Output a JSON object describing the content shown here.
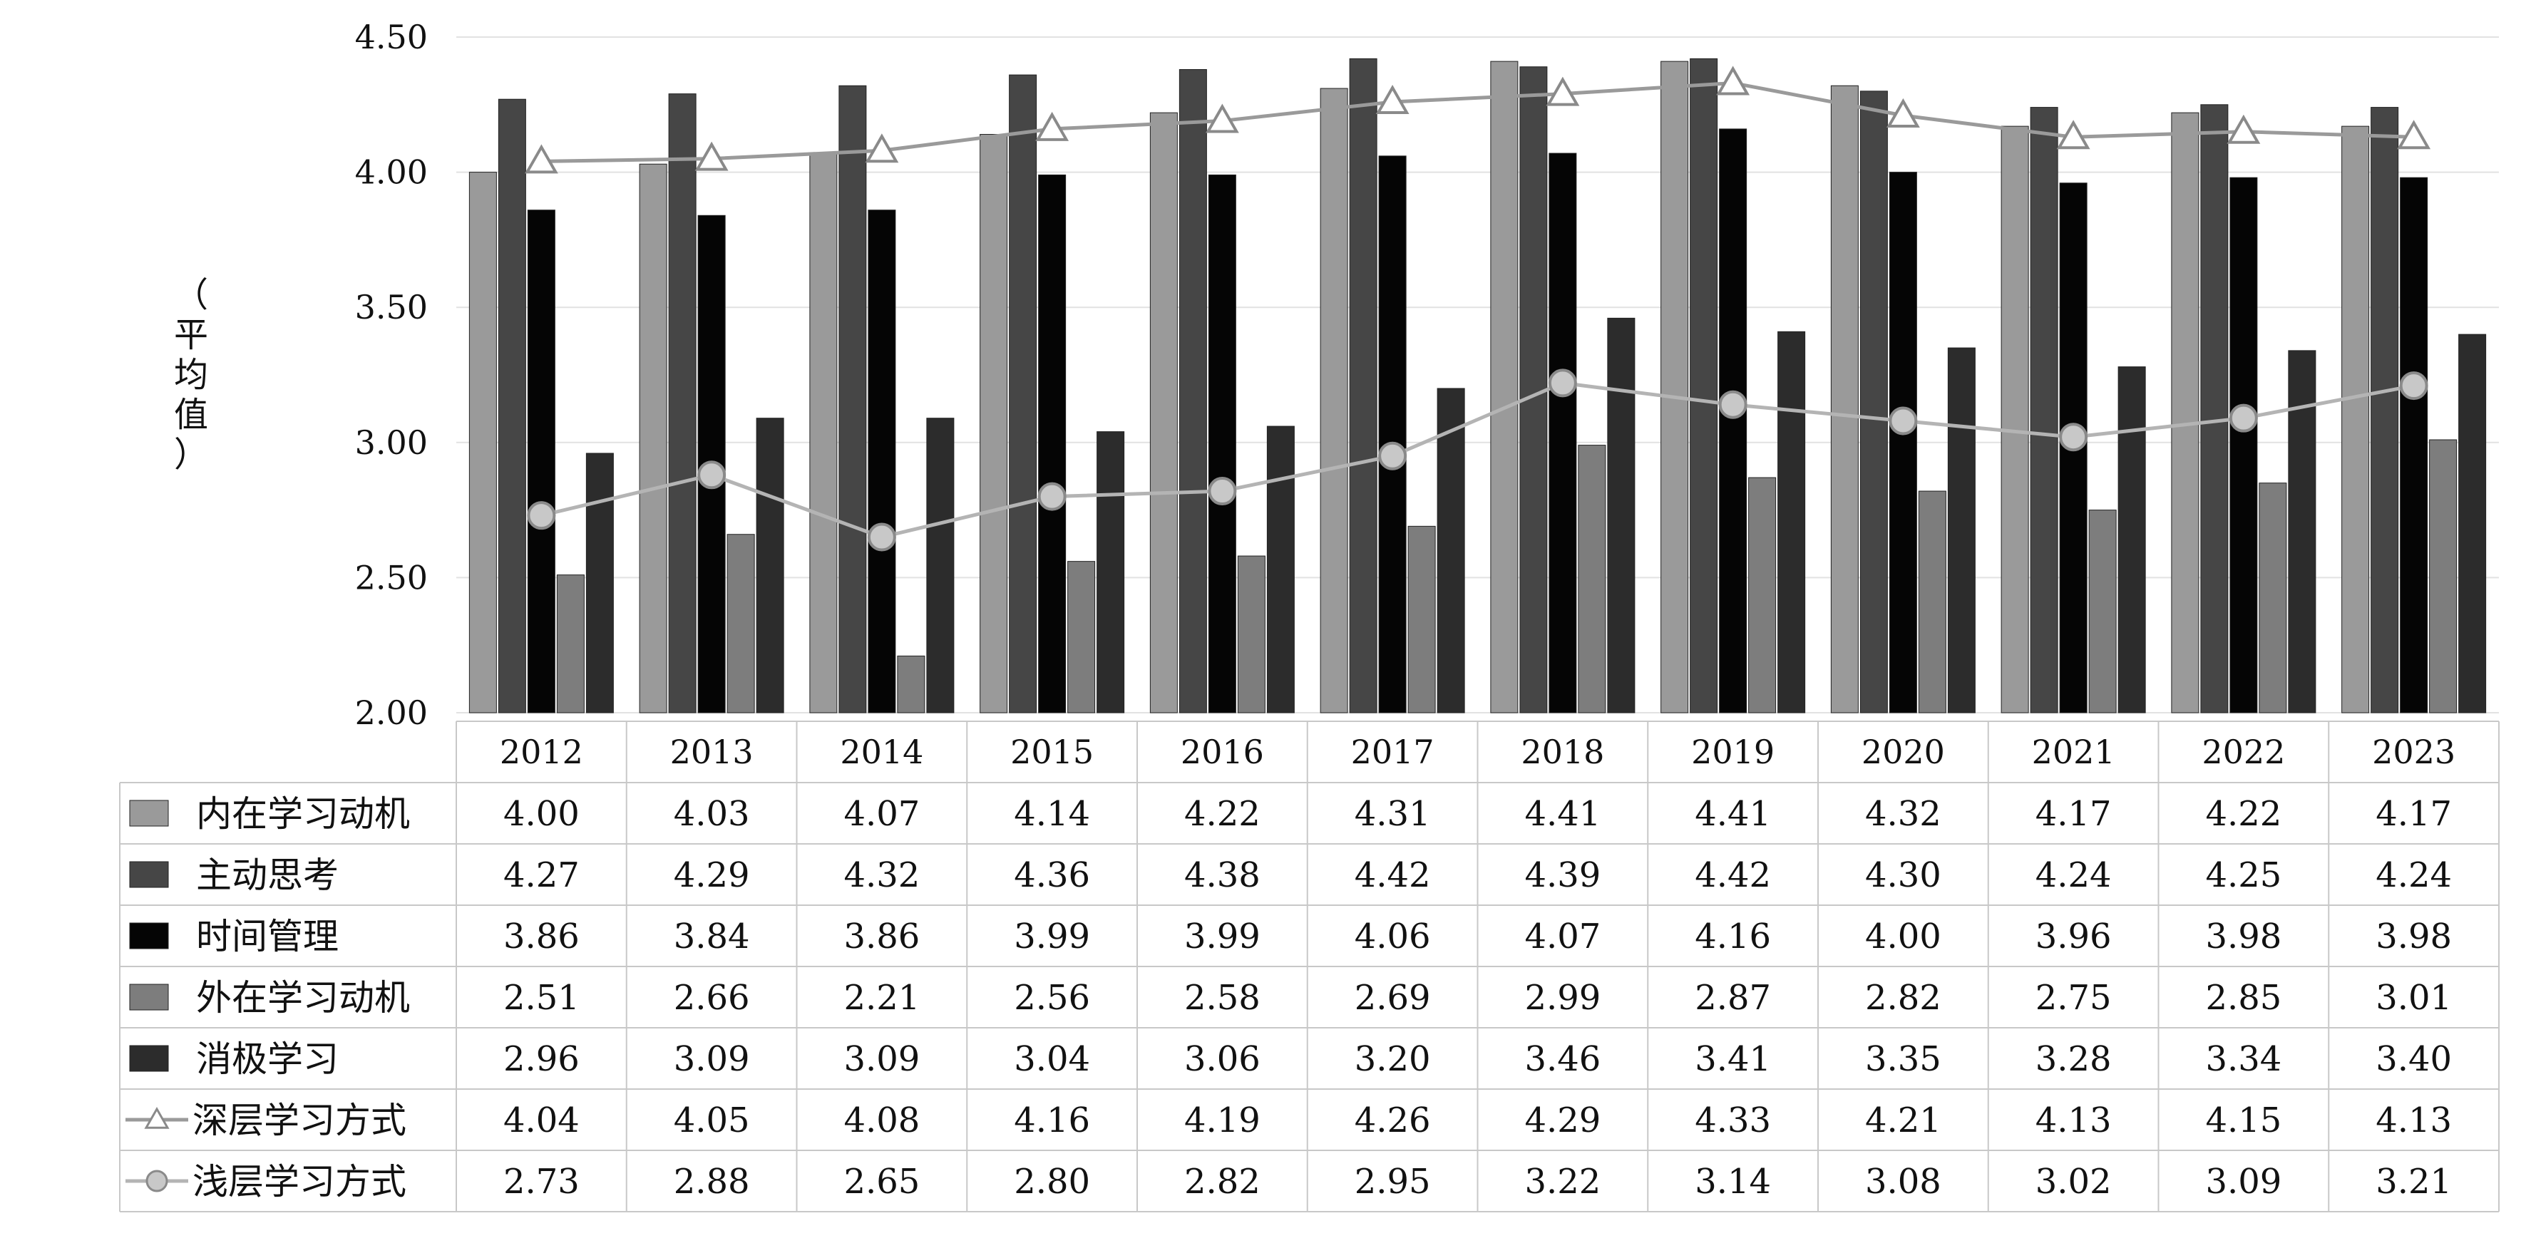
{
  "chart_data": {
    "type": "bar",
    "ylabel": "（平均值）",
    "ylim": [
      2.0,
      4.5
    ],
    "yticks": [
      "2.00",
      "2.50",
      "3.00",
      "3.50",
      "4.00",
      "4.50"
    ],
    "grid": true,
    "legend": "table-below",
    "categories": [
      "2012",
      "2013",
      "2014",
      "2015",
      "2016",
      "2017",
      "2018",
      "2019",
      "2020",
      "2021",
      "2022",
      "2023"
    ],
    "series": [
      {
        "name": "内在学习动机",
        "kind": "bar",
        "color": "#9a9a9a",
        "values": [
          4.0,
          4.03,
          4.07,
          4.14,
          4.22,
          4.31,
          4.41,
          4.41,
          4.32,
          4.17,
          4.22,
          4.17
        ],
        "labels": [
          "4.00",
          "4.03",
          "4.07",
          "4.14",
          "4.22",
          "4.31",
          "4.41",
          "4.41",
          "4.32",
          "4.17",
          "4.22",
          "4.17"
        ]
      },
      {
        "name": "主动思考",
        "kind": "bar",
        "color": "#464646",
        "values": [
          4.27,
          4.29,
          4.32,
          4.36,
          4.38,
          4.42,
          4.39,
          4.42,
          4.3,
          4.24,
          4.25,
          4.24
        ],
        "labels": [
          "4.27",
          "4.29",
          "4.32",
          "4.36",
          "4.38",
          "4.42",
          "4.39",
          "4.42",
          "4.30",
          "4.24",
          "4.25",
          "4.24"
        ]
      },
      {
        "name": "时间管理",
        "kind": "bar",
        "color": "#050505",
        "values": [
          3.86,
          3.84,
          3.86,
          3.99,
          3.99,
          4.06,
          4.07,
          4.16,
          4.0,
          3.96,
          3.98,
          3.98
        ],
        "labels": [
          "3.86",
          "3.84",
          "3.86",
          "3.99",
          "3.99",
          "4.06",
          "4.07",
          "4.16",
          "4.00",
          "3.96",
          "3.98",
          "3.98"
        ]
      },
      {
        "name": "外在学习动机",
        "kind": "bar",
        "color": "#7d7d7d",
        "values": [
          2.51,
          2.66,
          2.21,
          2.56,
          2.58,
          2.69,
          2.99,
          2.87,
          2.82,
          2.75,
          2.85,
          3.01
        ],
        "labels": [
          "2.51",
          "2.66",
          "2.21",
          "2.56",
          "2.58",
          "2.69",
          "2.99",
          "2.87",
          "2.82",
          "2.75",
          "2.85",
          "3.01"
        ]
      },
      {
        "name": "消极学习",
        "kind": "bar",
        "color": "#2c2c2c",
        "values": [
          2.96,
          3.09,
          3.09,
          3.04,
          3.06,
          3.2,
          3.46,
          3.41,
          3.35,
          3.28,
          3.34,
          3.4
        ],
        "labels": [
          "2.96",
          "3.09",
          "3.09",
          "3.04",
          "3.06",
          "3.20",
          "3.46",
          "3.41",
          "3.35",
          "3.28",
          "3.34",
          "3.40"
        ]
      },
      {
        "name": "深层学习方式",
        "kind": "line",
        "marker": "triangle",
        "color": "#9a9a9a",
        "values": [
          4.04,
          4.05,
          4.08,
          4.16,
          4.19,
          4.26,
          4.29,
          4.33,
          4.21,
          4.13,
          4.15,
          4.13
        ],
        "labels": [
          "4.04",
          "4.05",
          "4.08",
          "4.16",
          "4.19",
          "4.26",
          "4.29",
          "4.33",
          "4.21",
          "4.13",
          "4.15",
          "4.13"
        ]
      },
      {
        "name": "浅层学习方式",
        "kind": "line",
        "marker": "circle",
        "color": "#b4b4b4",
        "values": [
          2.73,
          2.88,
          2.65,
          2.8,
          2.82,
          2.95,
          3.22,
          3.14,
          3.08,
          3.02,
          3.09,
          3.21
        ],
        "labels": [
          "2.73",
          "2.88",
          "2.65",
          "2.80",
          "2.82",
          "2.95",
          "3.22",
          "3.14",
          "3.08",
          "3.02",
          "3.09",
          "3.21"
        ]
      }
    ]
  }
}
